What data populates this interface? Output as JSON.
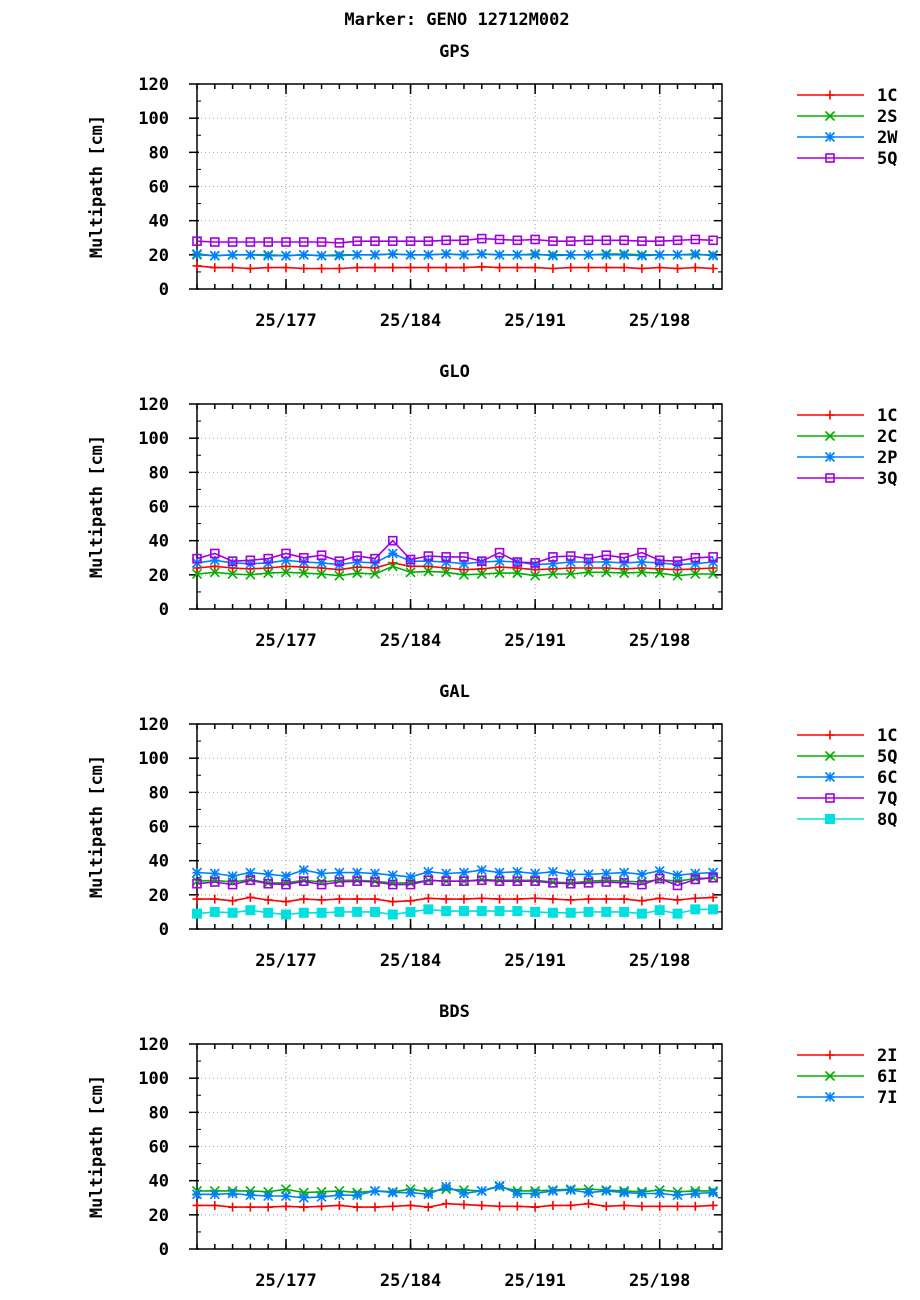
{
  "page": {
    "title": "Marker: GENO 12712M002"
  },
  "chart_data": [
    {
      "type": "line",
      "title": "GPS",
      "ylabel": "Multipath [cm]",
      "xlabel": "",
      "ylim": [
        0,
        120
      ],
      "y_ticks": [
        0,
        20,
        40,
        60,
        80,
        100,
        120
      ],
      "xlim": [
        172,
        201.5
      ],
      "x_ticks": [
        {
          "value": 177,
          "label": "25/177"
        },
        {
          "value": 184,
          "label": "25/184"
        },
        {
          "value": 191,
          "label": "25/191"
        },
        {
          "value": 198,
          "label": "25/198"
        }
      ],
      "grid": true,
      "legend_position": "right",
      "x": [
        172,
        173,
        174,
        175,
        176,
        177,
        178,
        179,
        180,
        181,
        182,
        183,
        184,
        185,
        186,
        187,
        188,
        189,
        190,
        191,
        192,
        193,
        194,
        195,
        196,
        197,
        198,
        199,
        200,
        201
      ],
      "series": [
        {
          "name": "1C",
          "color": "#ff0000",
          "marker": "plus",
          "values": [
            13.5,
            12.5,
            12.5,
            12.0,
            12.5,
            12.5,
            12.0,
            12.0,
            12.0,
            12.5,
            12.5,
            12.5,
            12.5,
            12.5,
            12.5,
            12.5,
            13.0,
            12.5,
            12.5,
            12.5,
            12.0,
            12.5,
            12.5,
            12.5,
            12.5,
            12.0,
            12.5,
            12.0,
            12.5,
            12.0
          ]
        },
        {
          "name": "2S",
          "color": "#00b000",
          "marker": "x",
          "values": [
            20.0,
            19.5,
            20.0,
            20.0,
            20.0,
            19.5,
            20.0,
            19.5,
            20.0,
            20.0,
            20.0,
            20.5,
            20.0,
            20.0,
            20.5,
            20.0,
            20.5,
            20.0,
            20.0,
            20.0,
            20.0,
            20.0,
            20.0,
            20.5,
            20.5,
            20.0,
            20.0,
            20.0,
            20.0,
            20.0
          ]
        },
        {
          "name": "2W",
          "color": "#0080ff",
          "marker": "star",
          "values": [
            20.5,
            19.5,
            20.0,
            20.0,
            19.5,
            19.5,
            20.0,
            19.5,
            19.5,
            20.0,
            20.0,
            20.5,
            20.0,
            20.0,
            20.5,
            20.0,
            20.5,
            20.0,
            20.0,
            20.5,
            19.5,
            20.0,
            20.0,
            20.0,
            20.0,
            19.5,
            20.0,
            20.0,
            20.5,
            19.5
          ]
        },
        {
          "name": "5Q",
          "color": "#a000e0",
          "marker": "square",
          "values": [
            28.0,
            27.5,
            27.5,
            27.5,
            27.5,
            27.5,
            27.5,
            27.5,
            27.0,
            28.0,
            28.0,
            28.0,
            28.0,
            28.0,
            28.5,
            28.5,
            29.5,
            29.0,
            28.5,
            29.0,
            28.0,
            28.0,
            28.5,
            28.5,
            28.5,
            28.0,
            28.0,
            28.5,
            29.0,
            28.5
          ]
        }
      ]
    },
    {
      "type": "line",
      "title": "GLO",
      "ylabel": "Multipath [cm]",
      "xlabel": "",
      "ylim": [
        0,
        120
      ],
      "y_ticks": [
        0,
        20,
        40,
        60,
        80,
        100,
        120
      ],
      "xlim": [
        172,
        201.5
      ],
      "x_ticks": [
        {
          "value": 177,
          "label": "25/177"
        },
        {
          "value": 184,
          "label": "25/184"
        },
        {
          "value": 191,
          "label": "25/191"
        },
        {
          "value": 198,
          "label": "25/198"
        }
      ],
      "grid": true,
      "legend_position": "right",
      "x": [
        172,
        173,
        174,
        175,
        176,
        177,
        178,
        179,
        180,
        181,
        182,
        183,
        184,
        185,
        186,
        187,
        188,
        189,
        190,
        191,
        192,
        193,
        194,
        195,
        196,
        197,
        198,
        199,
        200,
        201
      ],
      "series": [
        {
          "name": "1C",
          "color": "#ff0000",
          "marker": "plus",
          "values": [
            24.0,
            25.0,
            24.0,
            23.5,
            24.0,
            25.0,
            24.5,
            24.0,
            23.0,
            24.5,
            24.0,
            27.0,
            25.0,
            25.0,
            24.0,
            23.0,
            23.5,
            24.5,
            24.0,
            23.0,
            23.5,
            24.0,
            24.0,
            24.0,
            23.5,
            24.0,
            23.5,
            23.0,
            23.5,
            24.0
          ]
        },
        {
          "name": "2C",
          "color": "#00b000",
          "marker": "x",
          "values": [
            20.5,
            21.5,
            20.5,
            20.0,
            21.0,
            21.5,
            21.0,
            20.5,
            19.5,
            21.0,
            20.5,
            25.0,
            21.5,
            22.0,
            21.5,
            20.0,
            20.5,
            21.0,
            21.0,
            19.5,
            20.5,
            20.5,
            21.5,
            21.5,
            21.0,
            21.5,
            21.0,
            19.5,
            20.5,
            20.5
          ]
        },
        {
          "name": "2P",
          "color": "#0080ff",
          "marker": "star",
          "values": [
            27.0,
            28.5,
            27.0,
            26.5,
            27.0,
            28.5,
            27.5,
            27.0,
            26.0,
            27.5,
            27.0,
            32.5,
            28.0,
            28.0,
            27.5,
            26.5,
            27.5,
            28.0,
            27.5,
            26.0,
            26.5,
            27.5,
            27.5,
            27.5,
            27.0,
            27.5,
            27.0,
            26.0,
            26.5,
            27.5
          ]
        },
        {
          "name": "3Q",
          "color": "#a000e0",
          "marker": "square",
          "values": [
            29.5,
            32.5,
            28.0,
            28.5,
            29.5,
            32.5,
            30.0,
            31.5,
            28.0,
            31.0,
            29.5,
            40.0,
            29.0,
            31.0,
            30.5,
            30.5,
            28.0,
            33.0,
            27.5,
            27.0,
            30.5,
            31.0,
            29.5,
            31.5,
            30.0,
            33.0,
            28.5,
            28.0,
            30.0,
            30.5
          ]
        }
      ]
    },
    {
      "type": "line",
      "title": "GAL",
      "ylabel": "Multipath [cm]",
      "xlabel": "",
      "ylim": [
        0,
        120
      ],
      "y_ticks": [
        0,
        20,
        40,
        60,
        80,
        100,
        120
      ],
      "xlim": [
        172,
        201.5
      ],
      "x_ticks": [
        {
          "value": 177,
          "label": "25/177"
        },
        {
          "value": 184,
          "label": "25/184"
        },
        {
          "value": 191,
          "label": "25/191"
        },
        {
          "value": 198,
          "label": "25/198"
        }
      ],
      "grid": true,
      "legend_position": "right",
      "x": [
        172,
        173,
        174,
        175,
        176,
        177,
        178,
        179,
        180,
        181,
        182,
        183,
        184,
        185,
        186,
        187,
        188,
        189,
        190,
        191,
        192,
        193,
        194,
        195,
        196,
        197,
        198,
        199,
        200,
        201
      ],
      "series": [
        {
          "name": "1C",
          "color": "#ff0000",
          "marker": "plus",
          "values": [
            17.5,
            17.5,
            16.5,
            18.5,
            17.0,
            16.0,
            17.5,
            17.0,
            17.5,
            17.5,
            17.5,
            16.0,
            16.5,
            18.0,
            17.5,
            17.5,
            18.0,
            17.5,
            17.5,
            18.0,
            17.5,
            17.0,
            17.5,
            17.5,
            17.5,
            16.5,
            18.0,
            17.0,
            18.0,
            18.5
          ]
        },
        {
          "name": "5Q",
          "color": "#00b000",
          "marker": "x",
          "values": [
            28.0,
            28.5,
            27.5,
            29.0,
            27.0,
            27.0,
            28.5,
            27.5,
            28.5,
            28.5,
            28.0,
            27.0,
            27.0,
            28.5,
            28.0,
            28.0,
            29.0,
            28.5,
            28.5,
            28.5,
            27.5,
            27.0,
            28.0,
            28.5,
            28.0,
            27.5,
            29.0,
            28.0,
            29.5,
            30.0
          ]
        },
        {
          "name": "6C",
          "color": "#0080ff",
          "marker": "star",
          "values": [
            33.0,
            32.5,
            31.0,
            33.0,
            32.0,
            31.0,
            34.5,
            32.5,
            33.0,
            33.0,
            32.5,
            31.5,
            30.5,
            33.5,
            32.5,
            33.0,
            34.5,
            33.0,
            33.5,
            32.5,
            33.5,
            32.0,
            32.0,
            32.5,
            33.0,
            32.0,
            34.0,
            31.5,
            32.5,
            33.0
          ]
        },
        {
          "name": "7Q",
          "color": "#a000e0",
          "marker": "square",
          "values": [
            26.5,
            27.5,
            26.0,
            28.5,
            26.5,
            26.0,
            28.0,
            26.0,
            27.5,
            28.0,
            27.5,
            26.0,
            26.0,
            28.5,
            28.0,
            28.0,
            28.5,
            28.0,
            28.0,
            28.0,
            27.0,
            26.5,
            27.0,
            27.5,
            27.0,
            26.0,
            29.5,
            25.5,
            29.0,
            30.0
          ]
        },
        {
          "name": "8Q",
          "color": "#00e0e0",
          "marker": "filled-square",
          "values": [
            9.0,
            10.0,
            9.5,
            11.0,
            9.5,
            8.5,
            9.5,
            9.5,
            10.0,
            10.0,
            10.0,
            8.5,
            10.0,
            11.5,
            10.5,
            10.5,
            10.5,
            10.5,
            10.5,
            10.0,
            9.5,
            9.5,
            10.0,
            10.0,
            10.0,
            9.0,
            11.0,
            9.0,
            11.5,
            11.5
          ]
        }
      ]
    },
    {
      "type": "line",
      "title": "BDS",
      "ylabel": "Multipath [cm]",
      "xlabel": "",
      "ylim": [
        0,
        120
      ],
      "y_ticks": [
        0,
        20,
        40,
        60,
        80,
        100,
        120
      ],
      "xlim": [
        172,
        201.5
      ],
      "x_ticks": [
        {
          "value": 177,
          "label": "25/177"
        },
        {
          "value": 184,
          "label": "25/184"
        },
        {
          "value": 191,
          "label": "25/191"
        },
        {
          "value": 198,
          "label": "25/198"
        }
      ],
      "grid": true,
      "legend_position": "right",
      "x": [
        172,
        173,
        174,
        175,
        176,
        177,
        178,
        179,
        180,
        181,
        182,
        183,
        184,
        185,
        186,
        187,
        188,
        189,
        190,
        191,
        192,
        193,
        194,
        195,
        196,
        197,
        198,
        199,
        200,
        201
      ],
      "series": [
        {
          "name": "2I",
          "color": "#ff0000",
          "marker": "plus",
          "values": [
            25.5,
            25.5,
            24.5,
            24.5,
            24.5,
            25.0,
            24.5,
            25.0,
            25.5,
            24.5,
            24.5,
            25.0,
            25.5,
            24.5,
            26.5,
            26.0,
            25.5,
            25.0,
            25.0,
            24.5,
            25.5,
            25.5,
            26.5,
            25.0,
            25.5,
            25.0,
            25.0,
            25.0,
            25.0,
            25.5
          ]
        },
        {
          "name": "6I",
          "color": "#00b000",
          "marker": "x",
          "values": [
            34.0,
            34.0,
            34.0,
            34.0,
            33.5,
            35.0,
            33.0,
            33.5,
            34.0,
            33.0,
            34.0,
            33.5,
            35.0,
            33.5,
            35.0,
            34.5,
            34.0,
            36.5,
            34.0,
            34.0,
            34.5,
            35.0,
            35.0,
            34.5,
            34.0,
            33.5,
            34.5,
            33.5,
            34.0,
            34.0
          ]
        },
        {
          "name": "7I",
          "color": "#0080ff",
          "marker": "star",
          "values": [
            32.0,
            32.0,
            32.5,
            31.5,
            31.0,
            31.0,
            30.0,
            30.5,
            31.5,
            31.5,
            34.0,
            33.0,
            33.0,
            32.0,
            36.5,
            32.5,
            34.0,
            37.0,
            32.5,
            32.5,
            34.0,
            34.5,
            33.0,
            34.0,
            33.0,
            32.5,
            32.5,
            31.5,
            32.5,
            33.0
          ]
        }
      ]
    }
  ]
}
